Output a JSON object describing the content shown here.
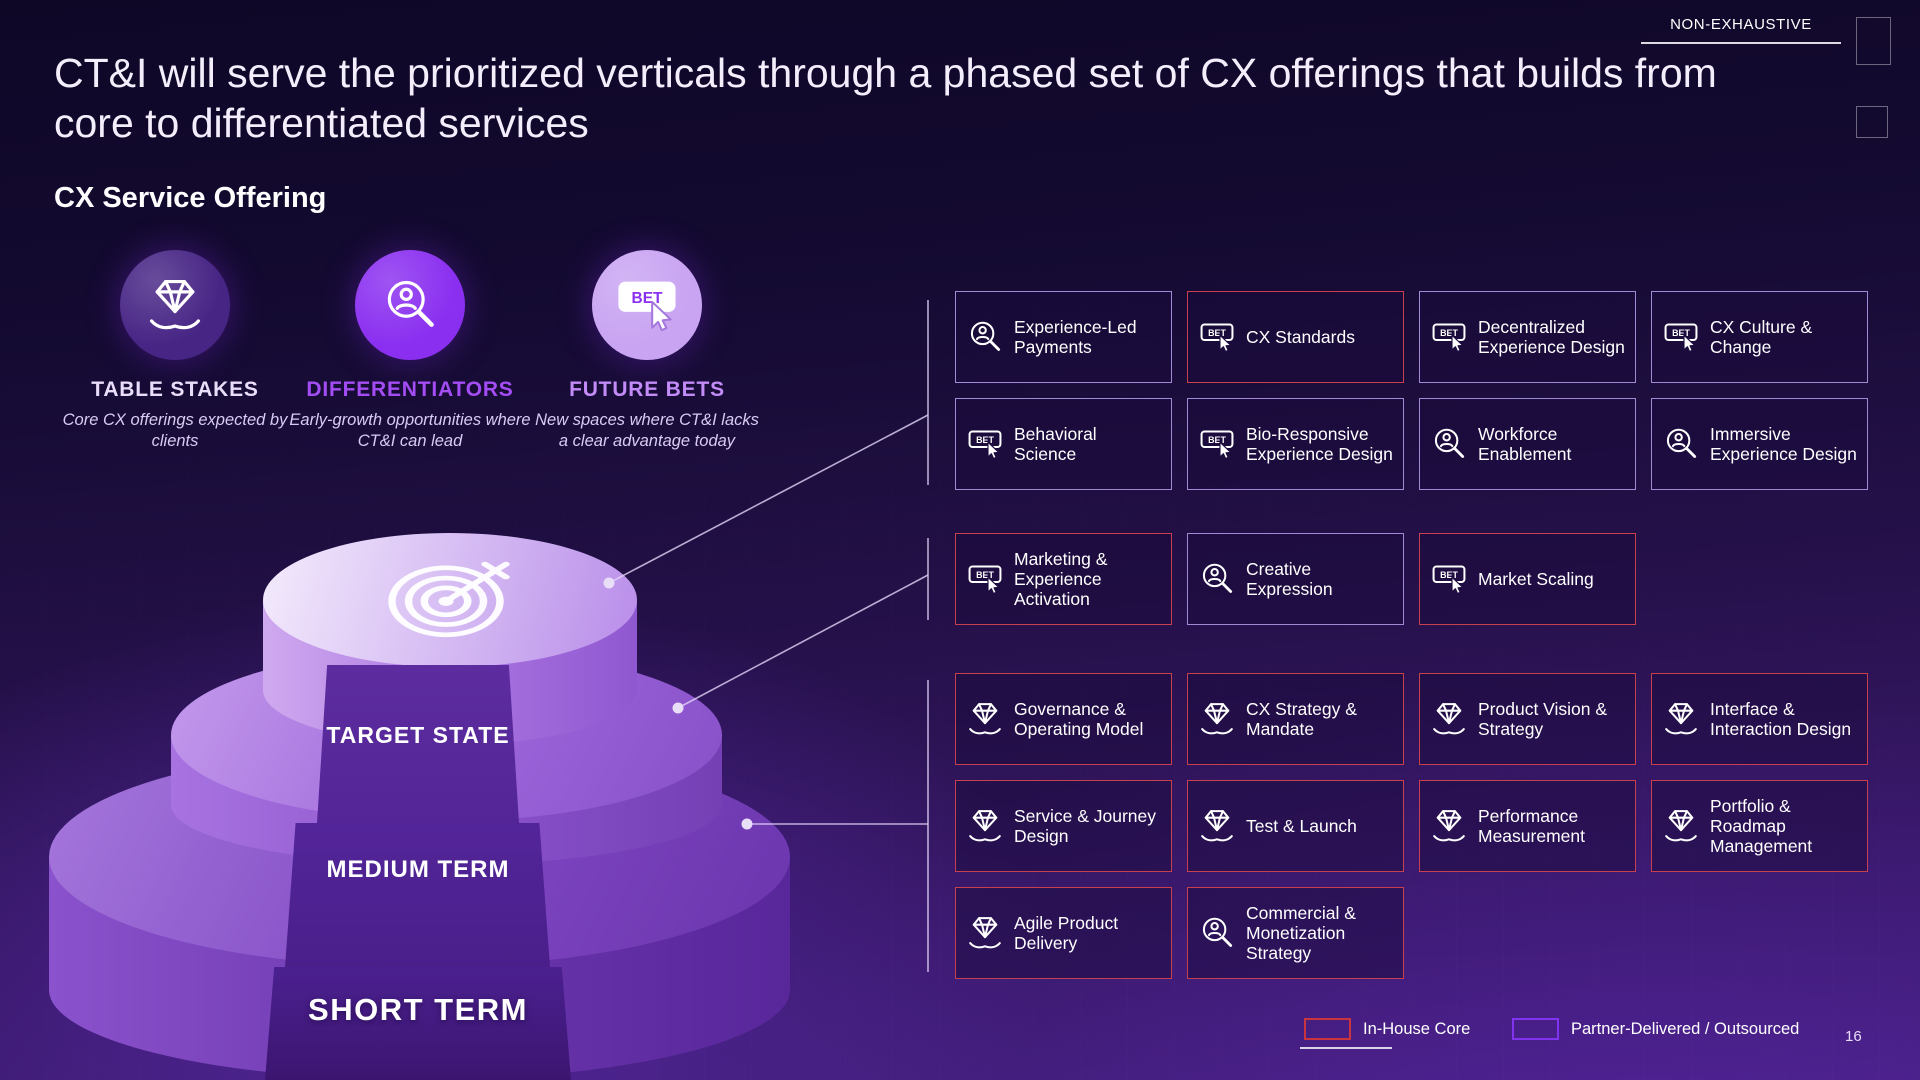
{
  "meta": {
    "non_exhaustive": "NON-EXHAUSTIVE",
    "page_number": "16"
  },
  "title": "CT&I will serve the prioritized verticals through a phased set of CX offerings that builds from core to differentiated services",
  "subtitle": "CX Service Offering",
  "icons": {
    "bet_label": "BET"
  },
  "categories": [
    {
      "id": "table-stakes",
      "label": "TABLE STAKES",
      "description": "Core CX offerings expected by clients",
      "icon": "diamond-hand-icon",
      "circle_color": "#472585",
      "label_color": "#e9ddfa"
    },
    {
      "id": "differentiators",
      "label": "DIFFERENTIATORS",
      "description": "Early-growth opportunities where CT&I can lead",
      "icon": "person-search-icon",
      "circle_color": "#8a2ff0",
      "label_color": "#a44df5"
    },
    {
      "id": "future-bets",
      "label": "FUTURE BETS",
      "description": "New spaces where CT&I lacks a clear advantage today",
      "icon": "bet-button-icon",
      "circle_color": "#c9a4f2",
      "label_color": "#c28bf7"
    }
  ],
  "pyramid": {
    "tiers": [
      {
        "label": "TARGET STATE"
      },
      {
        "label": "MEDIUM TERM"
      },
      {
        "label": "SHORT TERM"
      }
    ]
  },
  "groups": [
    {
      "name": "target-state-offerings",
      "cards": [
        {
          "label": "Experience-Led Payments",
          "icon": "person-search-icon",
          "delivery": "partner"
        },
        {
          "label": "CX Standards",
          "icon": "bet-button-icon",
          "delivery": "in-house"
        },
        {
          "label": "Decentralized Experience Design",
          "icon": "bet-button-icon",
          "delivery": "partner"
        },
        {
          "label": "CX Culture & Change",
          "icon": "bet-button-icon",
          "delivery": "partner"
        },
        {
          "label": "Behavioral Science",
          "icon": "bet-button-icon",
          "delivery": "partner"
        },
        {
          "label": "Bio-Responsive Experience Design",
          "icon": "bet-button-icon",
          "delivery": "partner"
        },
        {
          "label": "Workforce Enablement",
          "icon": "person-search-icon",
          "delivery": "partner"
        },
        {
          "label": "Immersive Experience Design",
          "icon": "person-search-icon",
          "delivery": "partner"
        }
      ]
    },
    {
      "name": "medium-term-offerings",
      "cards": [
        {
          "label": "Marketing & Experience Activation",
          "icon": "bet-button-icon",
          "delivery": "in-house"
        },
        {
          "label": "Creative Expression",
          "icon": "person-search-icon",
          "delivery": "partner"
        },
        {
          "label": "Market Scaling",
          "icon": "bet-button-icon",
          "delivery": "in-house"
        }
      ]
    },
    {
      "name": "short-term-offerings",
      "cards": [
        {
          "label": "Governance & Operating Model",
          "icon": "diamond-hand-icon",
          "delivery": "in-house"
        },
        {
          "label": "CX Strategy & Mandate",
          "icon": "diamond-hand-icon",
          "delivery": "in-house"
        },
        {
          "label": "Product Vision & Strategy",
          "icon": "diamond-hand-icon",
          "delivery": "in-house"
        },
        {
          "label": "Interface & Interaction Design",
          "icon": "diamond-hand-icon",
          "delivery": "in-house"
        },
        {
          "label": "Service & Journey Design",
          "icon": "diamond-hand-icon",
          "delivery": "in-house"
        },
        {
          "label": "Test & Launch",
          "icon": "diamond-hand-icon",
          "delivery": "in-house"
        },
        {
          "label": "Performance Measurement",
          "icon": "diamond-hand-icon",
          "delivery": "in-house"
        },
        {
          "label": "Portfolio & Roadmap Management",
          "icon": "diamond-hand-icon",
          "delivery": "in-house"
        },
        {
          "label": "Agile Product Delivery",
          "icon": "diamond-hand-icon",
          "delivery": "in-house"
        },
        {
          "label": "Commercial & Monetization Strategy",
          "icon": "person-search-icon",
          "delivery": "in-house"
        }
      ]
    }
  ],
  "legend": [
    {
      "id": "in-house",
      "label": "In-House Core",
      "color": "#c9353f"
    },
    {
      "id": "partner",
      "label": "Partner-Delivered / Outsourced",
      "color": "#8134ef"
    }
  ],
  "colors": {
    "in_house_border": "#c6404e",
    "partner_border": "#a08ad6"
  }
}
